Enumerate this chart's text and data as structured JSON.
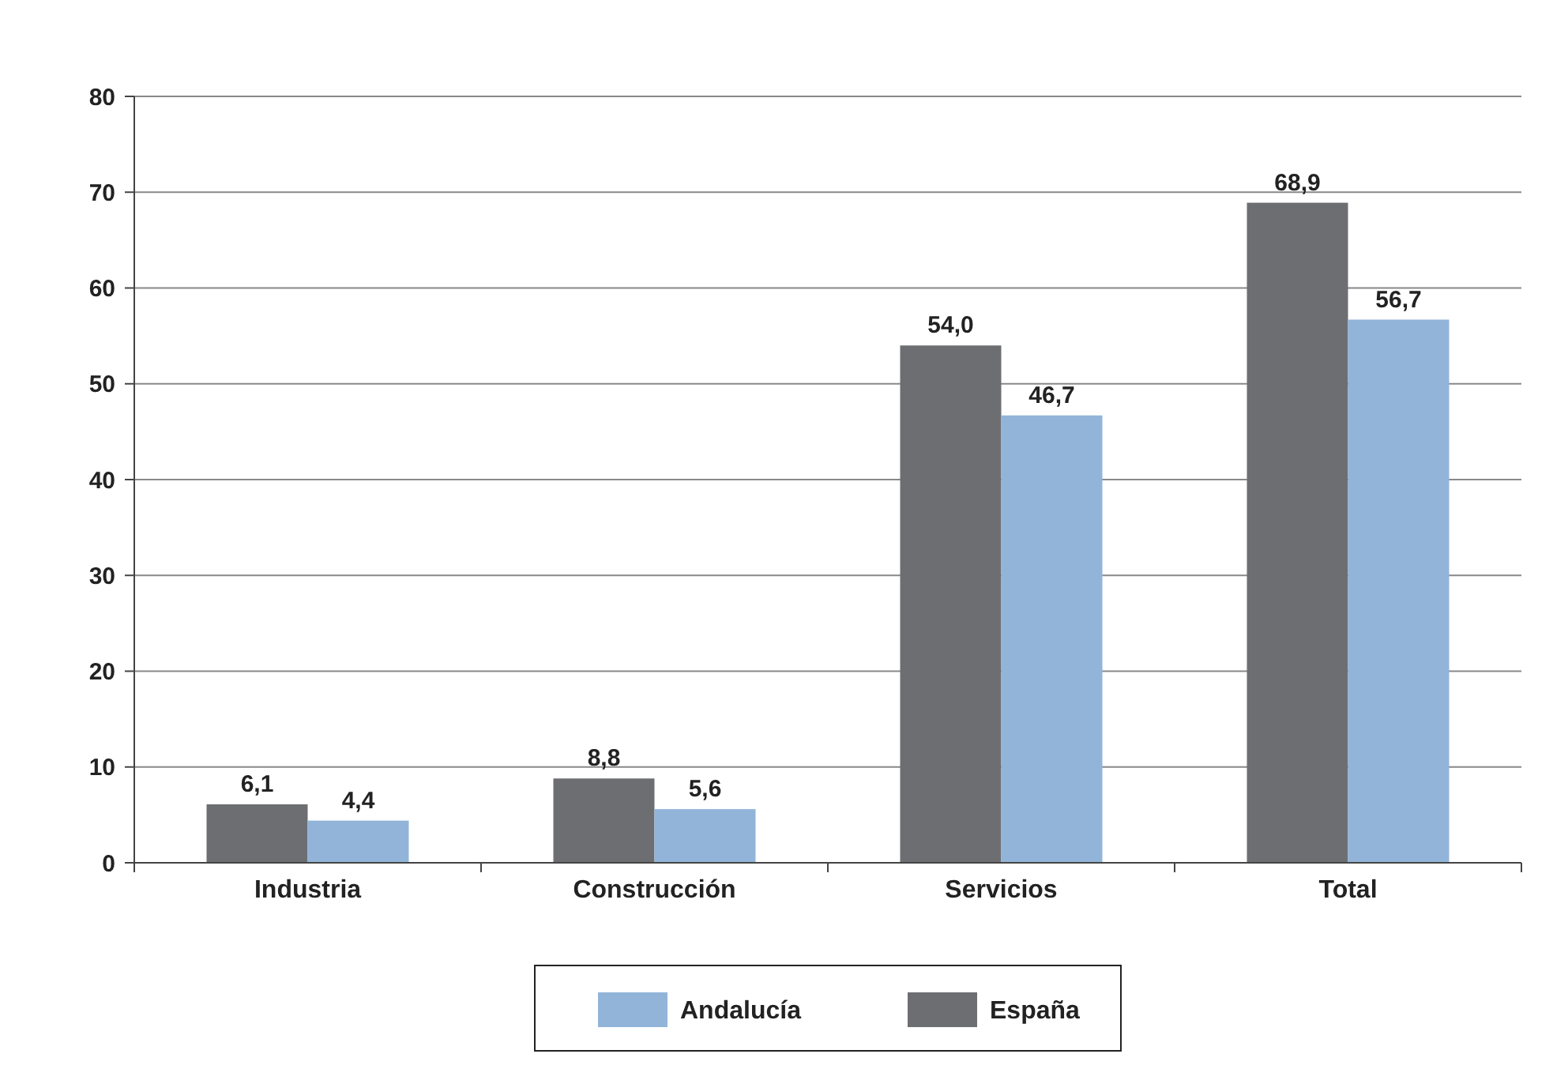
{
  "chart_data": {
    "type": "bar",
    "categories": [
      "Industria",
      "Construcción",
      "Servicios",
      "Total"
    ],
    "series": [
      {
        "name": "España",
        "color": "#6d6e72",
        "values": [
          6.1,
          8.8,
          54.0,
          68.9
        ],
        "value_labels": [
          "6,1",
          "8,8",
          "54,0",
          "68,9"
        ]
      },
      {
        "name": "Andalucía",
        "color": "#92b4d9",
        "values": [
          4.4,
          5.6,
          46.7,
          56.7
        ],
        "value_labels": [
          "4,4",
          "5,6",
          "46,7",
          "56,7"
        ]
      }
    ],
    "ylim": [
      0,
      80
    ],
    "yticks": [
      0,
      10,
      20,
      30,
      40,
      50,
      60,
      70,
      80
    ],
    "grid": "y",
    "legend": "bottom"
  }
}
